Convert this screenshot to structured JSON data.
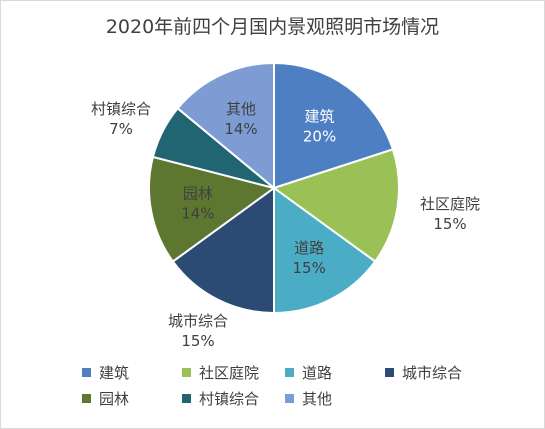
{
  "chart_data": {
    "type": "pie",
    "title": "2020年前四个月国内景观照明市场情况",
    "slices": [
      {
        "label": "建筑",
        "value": 20,
        "value_label": "20%",
        "color": "#4e7fc3"
      },
      {
        "label": "社区庭院",
        "value": 15,
        "value_label": "15%",
        "color": "#9ac155"
      },
      {
        "label": "道路",
        "value": 15,
        "value_label": "15%",
        "color": "#4bacc6"
      },
      {
        "label": "城市综合",
        "value": 15,
        "value_label": "15%",
        "color": "#2b4a74"
      },
      {
        "label": "园林",
        "value": 14,
        "value_label": "14%",
        "color": "#5e7730"
      },
      {
        "label": "村镇综合",
        "value": 7,
        "value_label": "7%",
        "color": "#216573"
      },
      {
        "label": "其他",
        "value": 14,
        "value_label": "14%",
        "color": "#7d9cd4"
      }
    ],
    "legend_position": "bottom"
  }
}
